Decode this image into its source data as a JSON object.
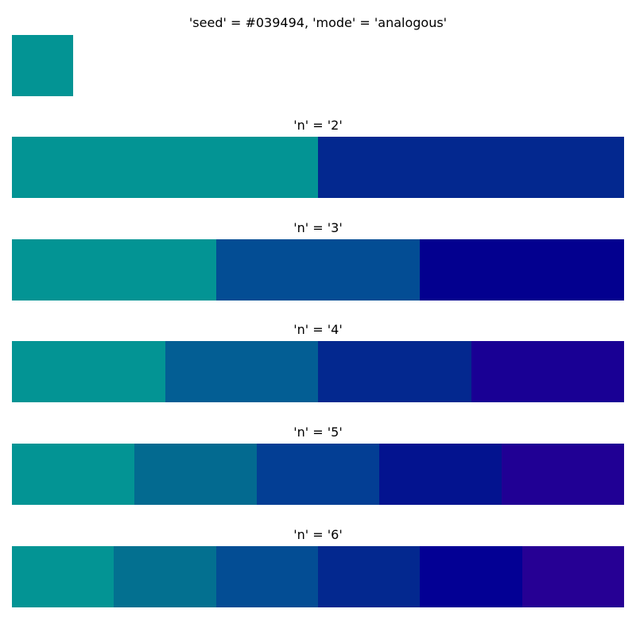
{
  "chart_data": {
    "type": "palette",
    "title": "'seed' = #039494, 'mode' = 'analogous'",
    "seed": "#039494",
    "mode": "analogous",
    "palettes": [
      {
        "label": "'n' = '2'",
        "colors": [
          "#039494",
          "#03288F"
        ]
      },
      {
        "label": "'n' = '3'",
        "colors": [
          "#039494",
          "#034D94",
          "#03008F"
        ]
      },
      {
        "label": "'n' = '4'",
        "colors": [
          "#039494",
          "#035E94",
          "#03288F",
          "#190094"
        ]
      },
      {
        "label": "'n' = '5'",
        "colors": [
          "#039494",
          "#036A90",
          "#033E94",
          "#03138F",
          "#200094"
        ]
      },
      {
        "label": "'n' = '6'",
        "colors": [
          "#039494",
          "#037090",
          "#034D94",
          "#03288F",
          "#030094",
          "#260094"
        ]
      }
    ]
  }
}
